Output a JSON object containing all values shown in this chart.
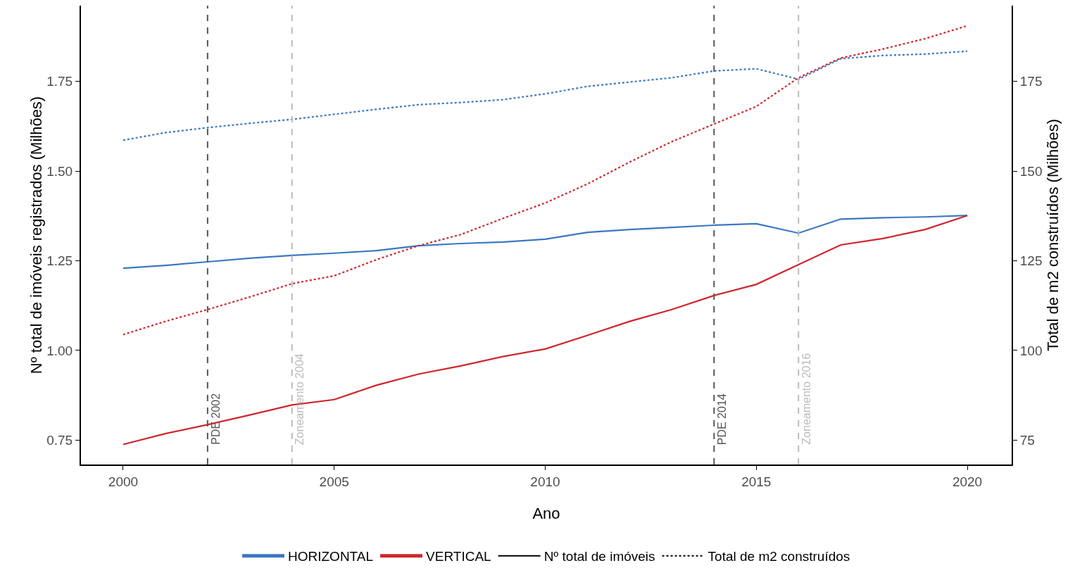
{
  "chart_data": {
    "type": "line",
    "xlabel": "Ano",
    "ylabel": "Nº total de imóveis registrados (Milhões)",
    "y2label": "Total de m2 construídos (Milhões)",
    "x": [
      2000,
      2001,
      2002,
      2003,
      2004,
      2005,
      2006,
      2007,
      2008,
      2009,
      2010,
      2011,
      2012,
      2013,
      2014,
      2015,
      2016,
      2017,
      2018,
      2019,
      2020
    ],
    "series": [
      {
        "name": "HORIZONTAL",
        "color": "#3a78c3",
        "line_style": "solid",
        "values": [
          1.229,
          1.237,
          1.247,
          1.257,
          1.265,
          1.271,
          1.278,
          1.292,
          1.298,
          1.302,
          1.31,
          1.329,
          1.337,
          1.343,
          1.349,
          1.353,
          1.327,
          1.366,
          1.37,
          1.372,
          1.376
        ]
      },
      {
        "name": "VERTICAL",
        "color": "#d0262d",
        "line_style": "solid",
        "values": [
          0.738,
          0.768,
          0.793,
          0.82,
          0.848,
          0.863,
          0.903,
          0.934,
          0.957,
          0.983,
          1.004,
          1.042,
          1.081,
          1.114,
          1.153,
          1.184,
          1.239,
          1.294,
          1.312,
          1.337,
          1.376
        ]
      },
      {
        "color": "#3a78c3",
        "line_style": "dotted",
        "axis": "y2",
        "values": [
          158.6,
          160.7,
          162.1,
          163.3,
          164.4,
          165.8,
          167.2,
          168.5,
          169.1,
          169.9,
          171.5,
          173.6,
          174.8,
          176.0,
          177.9,
          178.5,
          175.6,
          181.3,
          182.2,
          182.6,
          183.4
        ]
      },
      {
        "color": "#d0262d",
        "line_style": "dotted",
        "axis": "y2",
        "values": [
          104.4,
          108.1,
          111.4,
          114.9,
          118.6,
          120.8,
          125.3,
          129.2,
          132.3,
          136.8,
          141.1,
          146.4,
          152.5,
          158.2,
          163.1,
          168.0,
          176.0,
          181.5,
          184.0,
          186.9,
          190.5
        ]
      }
    ],
    "annotations": [
      "Nº total de imóveis",
      "Total de m2 construídos"
    ],
    "ref_lines": [
      {
        "axis": "x",
        "value": 2002,
        "label": "PDE 2002",
        "color": "#555555",
        "line_style": "dashed"
      },
      {
        "axis": "x",
        "value": 2004,
        "label": "Zoneamento 2004",
        "color": "#bbbbbb",
        "line_style": "dashed"
      },
      {
        "axis": "x",
        "value": 2014,
        "label": "PDE 2014",
        "color": "#555555",
        "line_style": "dashed"
      },
      {
        "axis": "x",
        "value": 2016,
        "label": "Zoneamento 2016",
        "color": "#bbbbbb",
        "line_style": "dashed"
      }
    ],
    "xlim": [
      1999,
      2021.05
    ],
    "xticks": [
      2000,
      2005,
      2010,
      2015,
      2020
    ],
    "ylim": [
      0.682,
      1.961
    ],
    "yticks": [
      {
        "value": 0.75,
        "label": "0.75"
      },
      {
        "value": 1,
        "label": "1.00"
      },
      {
        "value": 1.25,
        "label": "1.25"
      },
      {
        "value": 1.5,
        "label": "1.50"
      },
      {
        "value": 1.75,
        "label": "1.75"
      }
    ],
    "y2lim": [
      68.2,
      196.1
    ],
    "y2ticks": [
      75,
      100,
      125,
      150,
      175
    ],
    "grid": false,
    "legend": "bottom",
    "marker": "none"
  }
}
